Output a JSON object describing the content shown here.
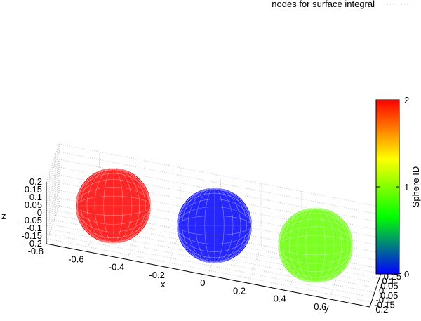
{
  "chart_data": {
    "type": "scatter",
    "projection": "3d",
    "title": "",
    "legend": {
      "entry": "nodes for surface integral",
      "placement": "top-right"
    },
    "axes": {
      "x": {
        "label": "x",
        "range": [
          -0.8,
          0.8
        ],
        "ticks": [
          "-0.8",
          "-0.6",
          "-0.4",
          "-0.2",
          "0",
          "0.2",
          "0.4",
          "0.6"
        ]
      },
      "y": {
        "label": "y",
        "range": [
          -0.2,
          0.2
        ],
        "ticks": [
          "-0.2",
          "-0.15",
          "-0.1",
          "-0.05",
          "0",
          "0.05",
          "0.1",
          "0.15",
          "0.2"
        ]
      },
      "z": {
        "label": "z",
        "range": [
          -0.2,
          0.2
        ],
        "ticks": [
          "0.2",
          "0.15",
          "0.1",
          "0.05",
          "0",
          "-0.05",
          "-0.1",
          "-0.15",
          "-0.2"
        ]
      }
    },
    "grid": true,
    "colorbar": {
      "label": "Sphere ID",
      "range": [
        0,
        2
      ],
      "ticks": [
        "0",
        "1",
        "2"
      ],
      "colors": [
        "#0000ff",
        "#00ff00",
        "#ffff00",
        "#ff0000"
      ]
    },
    "series": [
      {
        "sphere_id": 0,
        "center": {
          "x": -0.5,
          "y": 0,
          "z": 0
        },
        "radius": 0.2,
        "color": "#ff0000"
      },
      {
        "sphere_id": 1,
        "center": {
          "x": 0.0,
          "y": 0,
          "z": 0
        },
        "radius": 0.2,
        "color": "#0000ff"
      },
      {
        "sphere_id": 2,
        "center": {
          "x": 0.5,
          "y": 0,
          "z": 0
        },
        "radius": 0.2,
        "color": "#66ff00"
      }
    ]
  }
}
